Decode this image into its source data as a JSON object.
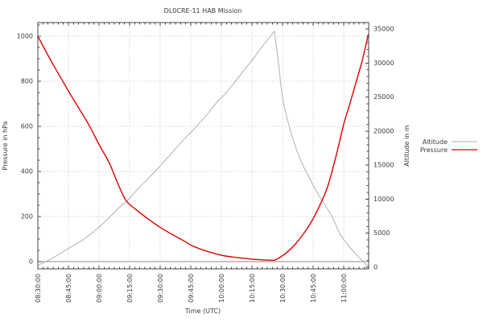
{
  "chart_data": {
    "type": "line",
    "title": "DL0CRE-11 HAB Mission",
    "xlabel": "Time (UTC)",
    "ylabel_left": "Pressure in hPa",
    "ylabel_right": "Altitude in m",
    "x_tick_labels": [
      "08:30:00",
      "08:45:00",
      "09:00:00",
      "09:15:00",
      "09:30:00",
      "09:45:00",
      "10:00:00",
      "10:15:00",
      "10:30:00",
      "10:45:00",
      "11:00:00"
    ],
    "x_tick_interval_minutes": 15,
    "x_minor_interval_minutes": 2.5,
    "x_range_minutes": [
      0,
      162
    ],
    "y_left_ticks": [
      0,
      200,
      400,
      600,
      800,
      1000
    ],
    "y_left_minor_step": 50,
    "y_left_range": [
      -32,
      1061
    ],
    "y_right_ticks": [
      0,
      5000,
      10000,
      15000,
      20000,
      25000,
      30000,
      35000
    ],
    "y_right_minor_step": 1000,
    "y_right_range": [
      -240,
      36000
    ],
    "grid": true,
    "legend_position": "outside-right",
    "burst_time_minutes": 116,
    "colors": {
      "pressure": "#e00000",
      "altitude": "#b0b0b0",
      "grid": "#c8c8c8",
      "zero_line": "#8a8a8a",
      "axis": "#444444",
      "text": "#3a3a3a"
    },
    "series": [
      {
        "name": "Altitude",
        "axis": "right",
        "unit": "m",
        "color": "#b0b0b0",
        "ascent": [
          [
            0,
            300
          ],
          [
            6,
            1150
          ],
          [
            12,
            2200
          ],
          [
            18,
            3300
          ],
          [
            22,
            4000
          ],
          [
            28,
            5400
          ],
          [
            34,
            7000
          ],
          [
            40,
            8800
          ],
          [
            43.5,
            9700
          ],
          [
            48,
            11150
          ],
          [
            54,
            13000
          ],
          [
            60,
            14900
          ],
          [
            66,
            16900
          ],
          [
            72,
            18900
          ],
          [
            76,
            20100
          ],
          [
            82,
            22100
          ],
          [
            88,
            24300
          ],
          [
            91,
            25200
          ],
          [
            96,
            27000
          ],
          [
            101,
            28900
          ],
          [
            105,
            30400
          ],
          [
            110,
            32400
          ],
          [
            116,
            34700
          ]
        ],
        "descent": [
          [
            118,
            30000
          ],
          [
            120,
            24900
          ],
          [
            123,
            21000
          ],
          [
            126,
            18000
          ],
          [
            129,
            15600
          ],
          [
            132,
            13800
          ],
          [
            136,
            11500
          ],
          [
            140,
            9500
          ],
          [
            144,
            7600
          ],
          [
            148,
            5000
          ],
          [
            151,
            3700
          ],
          [
            154,
            2600
          ],
          [
            157,
            1600
          ],
          [
            159.5,
            850
          ],
          [
            162,
            100
          ]
        ]
      },
      {
        "name": "Pressure",
        "axis": "left",
        "unit": "hPa",
        "color": "#e00000",
        "ascent": [
          [
            0,
            1000
          ],
          [
            5,
            915
          ],
          [
            10,
            835
          ],
          [
            15,
            757
          ],
          [
            20,
            682
          ],
          [
            25,
            607
          ],
          [
            30,
            520
          ],
          [
            35,
            438
          ],
          [
            40,
            330
          ],
          [
            43.5,
            268
          ],
          [
            48,
            232
          ],
          [
            54,
            190
          ],
          [
            60,
            152
          ],
          [
            66,
            120
          ],
          [
            72,
            90
          ],
          [
            75.5,
            71
          ],
          [
            80,
            55
          ],
          [
            84,
            43
          ],
          [
            88,
            33
          ],
          [
            92,
            25
          ],
          [
            96,
            20
          ],
          [
            100,
            16
          ],
          [
            104,
            12
          ],
          [
            108,
            9
          ],
          [
            112,
            7
          ],
          [
            116,
            6
          ]
        ],
        "descent": [
          [
            118,
            15
          ],
          [
            122,
            40
          ],
          [
            126,
            75
          ],
          [
            130,
            120
          ],
          [
            134,
            175
          ],
          [
            138,
            245
          ],
          [
            142,
            330
          ],
          [
            146,
            460
          ],
          [
            150,
            610
          ],
          [
            153,
            700
          ],
          [
            156,
            795
          ],
          [
            159,
            890
          ],
          [
            162,
            1005
          ]
        ]
      }
    ]
  }
}
